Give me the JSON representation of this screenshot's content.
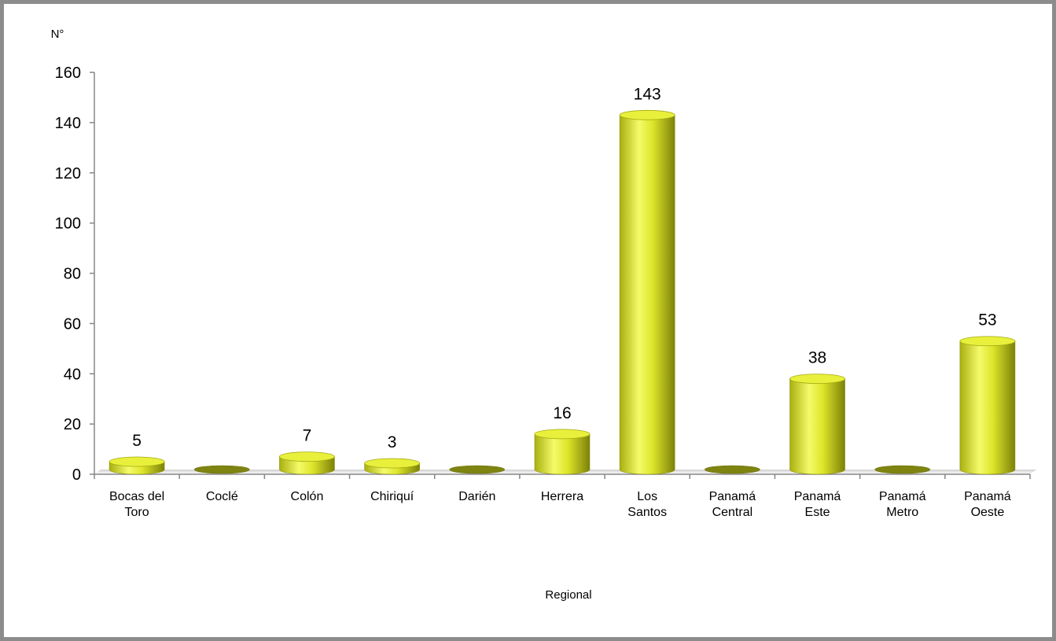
{
  "chart_data": {
    "type": "bar",
    "title": "",
    "ylabel": "N°",
    "xlabel": "Regional",
    "ylim": [
      0,
      160
    ],
    "yticks": [
      0,
      20,
      40,
      60,
      80,
      100,
      120,
      140,
      160
    ],
    "categories": [
      [
        "Bocas del",
        "Toro"
      ],
      [
        "Coclé"
      ],
      [
        "Colón"
      ],
      [
        "Chiriquí"
      ],
      [
        "Darién"
      ],
      [
        "Herrera"
      ],
      [
        "Los",
        "Santos"
      ],
      [
        "Panamá",
        "Central"
      ],
      [
        "Panamá",
        "Este"
      ],
      [
        "Panamá",
        "Metro"
      ],
      [
        "Panamá",
        "Oeste"
      ]
    ],
    "values": [
      5,
      0,
      7,
      3,
      0,
      16,
      143,
      0,
      38,
      0,
      53
    ],
    "data_labels": [
      "5",
      "",
      "7",
      "3",
      "",
      "16",
      "143",
      "",
      "38",
      "",
      "53"
    ],
    "colors": {
      "bar_light": "#f4fb6a",
      "bar_mid": "#d9e21c",
      "bar_dark": "#8a8f0a",
      "bar_empty": "#7f8411",
      "frame": "#8c8c8c"
    },
    "grid": false,
    "legend": "none"
  }
}
